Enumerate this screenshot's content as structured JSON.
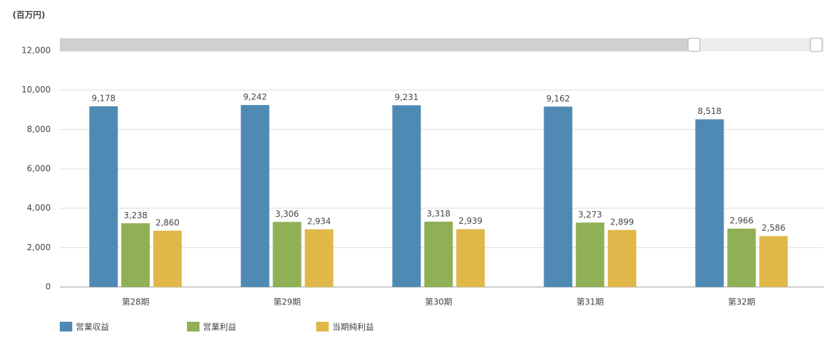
{
  "chart_data": {
    "type": "bar",
    "unit_label": "(百万円)",
    "categories": [
      "第28期",
      "第29期",
      "第30期",
      "第31期",
      "第32期"
    ],
    "series": [
      {
        "name": "営業収益",
        "color": "#4f8ab4",
        "values": [
          9178,
          9242,
          9231,
          9162,
          8518
        ],
        "value_labels": [
          "9,178",
          "9,242",
          "9,231",
          "9,162",
          "8,518"
        ]
      },
      {
        "name": "営業利益",
        "color": "#8fb055",
        "values": [
          3238,
          3306,
          3318,
          3273,
          2966
        ],
        "value_labels": [
          "3,238",
          "3,306",
          "3,318",
          "3,273",
          "2,966"
        ]
      },
      {
        "name": "当期純利益",
        "color": "#e0b84a",
        "values": [
          2860,
          2934,
          2939,
          2899,
          2586
        ],
        "value_labels": [
          "2,860",
          "2,934",
          "2,939",
          "2,899",
          "2,586"
        ]
      }
    ],
    "ylim": [
      0,
      12000
    ],
    "yticks": [
      0,
      {
        "value": 2000,
        "label": "2,000"
      },
      {
        "value": 4000,
        "label": "4,000"
      },
      {
        "value": 6000,
        "label": "6,000"
      },
      {
        "value": 8000,
        "label": "8,000"
      },
      {
        "value": 10000,
        "label": "10,000"
      },
      {
        "value": 12000,
        "label": "12,000"
      }
    ],
    "grid": true
  }
}
